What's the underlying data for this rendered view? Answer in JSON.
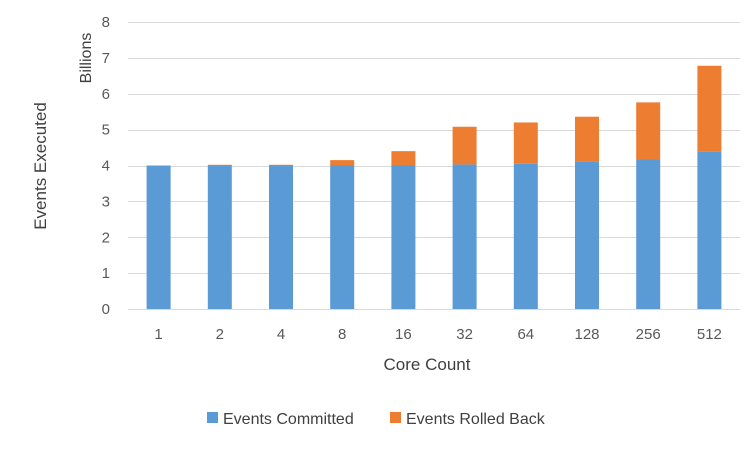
{
  "chart_data": {
    "type": "bar",
    "stacked": true,
    "categories": [
      "1",
      "2",
      "4",
      "8",
      "16",
      "32",
      "64",
      "128",
      "256",
      "512"
    ],
    "series": [
      {
        "name": "Events Committed",
        "color": "#5B9BD5",
        "values": [
          4.0,
          4.0,
          4.0,
          4.0,
          4.0,
          4.03,
          4.05,
          4.1,
          4.18,
          4.38
        ]
      },
      {
        "name": "Events Rolled Back",
        "color": "#ED7D31",
        "values": [
          0.0,
          0.02,
          0.02,
          0.15,
          0.4,
          1.05,
          1.15,
          1.26,
          1.58,
          2.4
        ]
      }
    ],
    "xlabel": "Core Count",
    "ylabel": "Events Executed",
    "yunits": "Billions",
    "ylim": [
      0,
      8
    ],
    "yticks": [
      "0",
      "1",
      "2",
      "3",
      "4",
      "5",
      "6",
      "7",
      "8"
    ],
    "grid": true,
    "legend_position": "bottom"
  }
}
